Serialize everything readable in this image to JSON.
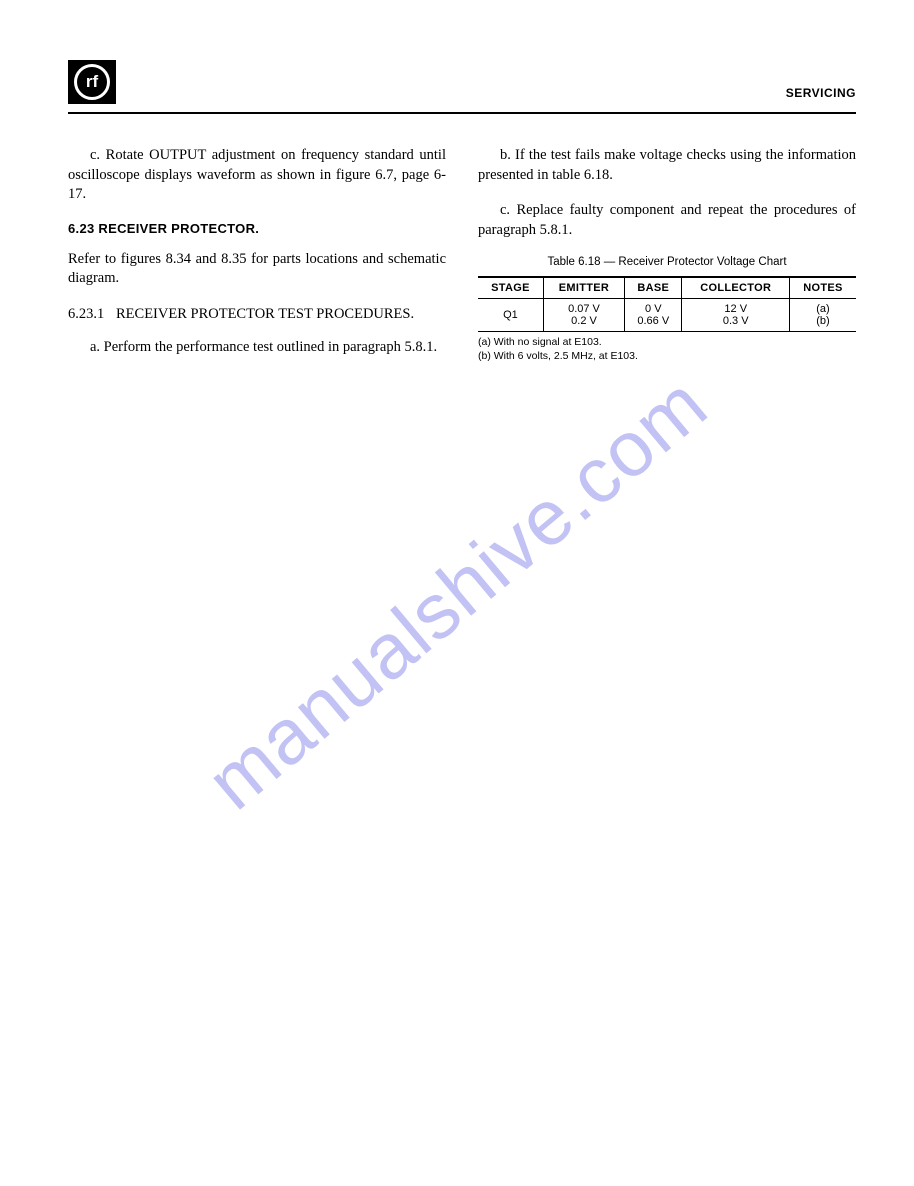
{
  "header": {
    "logo_text": "rf",
    "section_label": "SERVICING"
  },
  "watermark": "manualshive.com",
  "left_column": {
    "para_c": "c. Rotate OUTPUT adjustment on frequency standard until oscilloscope displays waveform as shown in figure 6.7, page 6-17.",
    "section_heading": "6.23 RECEIVER PROTECTOR.",
    "refer_para": "Refer to figures 8.34 and 8.35 for parts locations and schematic diagram.",
    "sub_num": "6.23.1",
    "sub_text": "RECEIVER PROTECTOR TEST PROCEDURES.",
    "para_a": "a. Perform the performance test outlined in paragraph 5.8.1."
  },
  "right_column": {
    "para_b": "b. If the test fails make voltage checks using the information presented in table 6.18.",
    "para_c": "c. Replace faulty component and repeat the procedures of paragraph 5.8.1."
  },
  "table": {
    "caption": "Table 6.18 — Receiver Protector Voltage Chart",
    "columns": [
      "STAGE",
      "EMITTER",
      "BASE",
      "COLLECTOR",
      "NOTES"
    ],
    "rows": [
      {
        "stage": "Q1",
        "emitter": "0.07 V\n0.2  V",
        "base": "0 V\n0.66 V",
        "collector": "12 V\n0.3 V",
        "notes": "(a)\n(b)"
      }
    ],
    "footnotes": [
      "(a) With no signal at E103.",
      "(b) With 6 volts, 2.5 MHz, at E103."
    ]
  }
}
